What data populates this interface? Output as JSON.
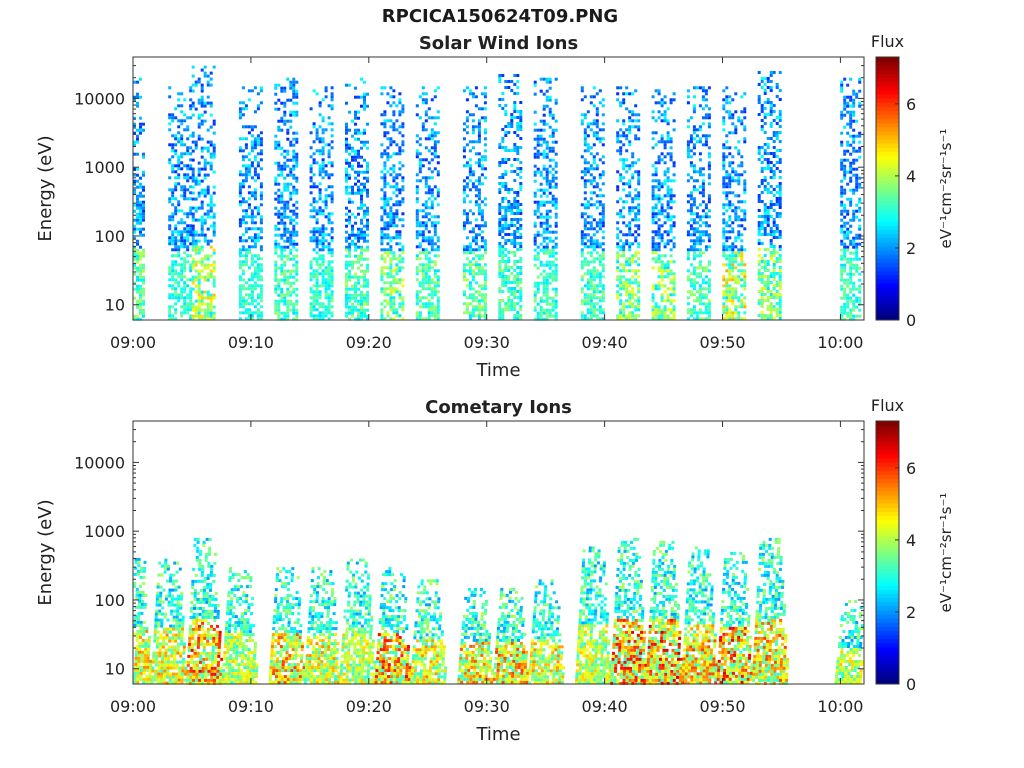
{
  "figure": {
    "title": "RPCICA150624T09.PNG"
  },
  "chart_data": [
    {
      "type": "heatmap",
      "title": "Solar Wind Ions",
      "xlabel": "Time",
      "ylabel": "Energy (eV)",
      "x_ticks": [
        "09:00",
        "09:10",
        "09:20",
        "09:30",
        "09:40",
        "09:50",
        "10:00"
      ],
      "y_ticks": [
        "10",
        "100",
        "1000",
        "10000"
      ],
      "y_scale": "log",
      "xlim": [
        "09:00",
        "10:02"
      ],
      "ylim": [
        6,
        40000
      ],
      "colorbar": {
        "label": "eV⁻¹cm⁻²sr⁻¹s⁻¹",
        "title": "Flux",
        "ticks": [
          "0",
          "2",
          "4",
          "6"
        ],
        "range": [
          0,
          7.3
        ],
        "colormap": "jet"
      },
      "bursts": [
        {
          "t": "09:00",
          "e_max": 20000,
          "peak_flux": 4.2
        },
        {
          "t": "09:04",
          "e_max": 15000,
          "peak_flux": 3.6
        },
        {
          "t": "09:06",
          "e_max": 30000,
          "peak_flux": 5.0
        },
        {
          "t": "09:10",
          "e_max": 15000,
          "peak_flux": 3.5
        },
        {
          "t": "09:13",
          "e_max": 20000,
          "peak_flux": 3.8
        },
        {
          "t": "09:16",
          "e_max": 15000,
          "peak_flux": 3.6
        },
        {
          "t": "09:19",
          "e_max": 20000,
          "peak_flux": 4.0
        },
        {
          "t": "09:22",
          "e_max": 15000,
          "peak_flux": 4.5
        },
        {
          "t": "09:25",
          "e_max": 15000,
          "peak_flux": 4.0
        },
        {
          "t": "09:29",
          "e_max": 15000,
          "peak_flux": 4.2
        },
        {
          "t": "09:32",
          "e_max": 25000,
          "peak_flux": 3.8
        },
        {
          "t": "09:35",
          "e_max": 20000,
          "peak_flux": 3.8
        },
        {
          "t": "09:39",
          "e_max": 15000,
          "peak_flux": 3.8
        },
        {
          "t": "09:42",
          "e_max": 15000,
          "peak_flux": 4.5
        },
        {
          "t": "09:45",
          "e_max": 15000,
          "peak_flux": 4.6
        },
        {
          "t": "09:48",
          "e_max": 15000,
          "peak_flux": 4.0
        },
        {
          "t": "09:51",
          "e_max": 15000,
          "peak_flux": 5.2
        },
        {
          "t": "09:54",
          "e_max": 25000,
          "peak_flux": 4.5
        },
        {
          "t": "10:01",
          "e_max": 20000,
          "peak_flux": 3.8
        }
      ]
    },
    {
      "type": "heatmap",
      "title": "Cometary Ions",
      "xlabel": "Time",
      "ylabel": "Energy (eV)",
      "x_ticks": [
        "09:00",
        "09:10",
        "09:20",
        "09:30",
        "09:40",
        "09:50",
        "10:00"
      ],
      "y_ticks": [
        "10",
        "100",
        "1000",
        "10000"
      ],
      "y_scale": "log",
      "xlim": [
        "09:00",
        "10:02"
      ],
      "ylim": [
        6,
        40000
      ],
      "colorbar": {
        "label": "eV⁻¹cm⁻²sr⁻¹s⁻¹",
        "title": "Flux",
        "ticks": [
          "0",
          "2",
          "4",
          "6"
        ],
        "range": [
          0,
          7.3
        ],
        "colormap": "jet"
      },
      "bursts": [
        {
          "t": "09:00",
          "e_max": 500,
          "peak_flux": 5.5
        },
        {
          "t": "09:03",
          "e_max": 400,
          "peak_flux": 5.5
        },
        {
          "t": "09:06",
          "e_max": 800,
          "peak_flux": 6.5
        },
        {
          "t": "09:09",
          "e_max": 300,
          "peak_flux": 5.0
        },
        {
          "t": "09:13",
          "e_max": 300,
          "peak_flux": 6.0
        },
        {
          "t": "09:16",
          "e_max": 300,
          "peak_flux": 5.5
        },
        {
          "t": "09:19",
          "e_max": 400,
          "peak_flux": 5.0
        },
        {
          "t": "09:22",
          "e_max": 300,
          "peak_flux": 6.5
        },
        {
          "t": "09:25",
          "e_max": 200,
          "peak_flux": 5.5
        },
        {
          "t": "09:29",
          "e_max": 150,
          "peak_flux": 5.8
        },
        {
          "t": "09:32",
          "e_max": 150,
          "peak_flux": 6.0
        },
        {
          "t": "09:35",
          "e_max": 200,
          "peak_flux": 5.5
        },
        {
          "t": "09:39",
          "e_max": 600,
          "peak_flux": 5.0
        },
        {
          "t": "09:42",
          "e_max": 800,
          "peak_flux": 6.5
        },
        {
          "t": "09:45",
          "e_max": 800,
          "peak_flux": 6.8
        },
        {
          "t": "09:48",
          "e_max": 600,
          "peak_flux": 6.0
        },
        {
          "t": "09:51",
          "e_max": 500,
          "peak_flux": 6.5
        },
        {
          "t": "09:54",
          "e_max": 800,
          "peak_flux": 6.0
        },
        {
          "t": "10:01",
          "e_max": 100,
          "peak_flux": 5.0
        }
      ]
    }
  ]
}
